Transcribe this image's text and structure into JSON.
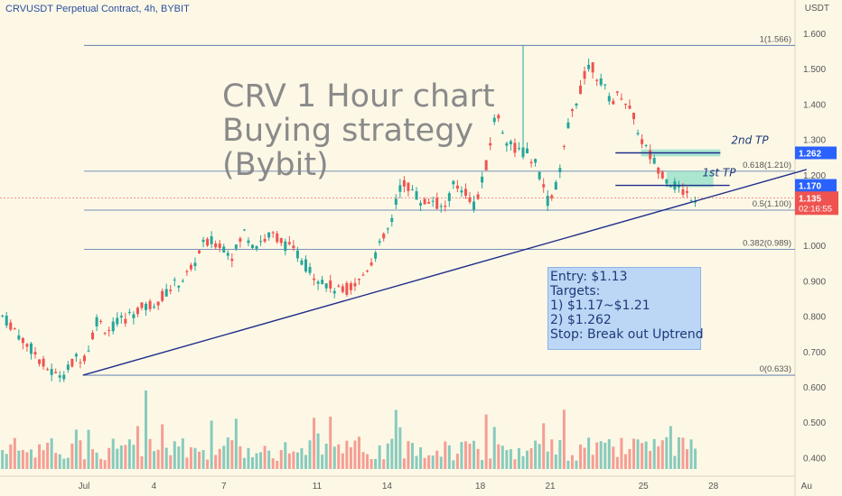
{
  "header": {
    "title": "CRVUSDT Perpetual Contract, 4h, BYBIT",
    "currency": "USDT"
  },
  "overlay": {
    "title_lines": [
      "CRV 1 Hour chart",
      "Buying strategy",
      "(Bybit)"
    ]
  },
  "note": {
    "lines": [
      "Entry: $1.13",
      "Targets:",
      "1) $1.17~$1.21",
      "2) $1.262",
      "Stop: Break out Uptrend"
    ]
  },
  "colors": {
    "background": "#fdf8e6",
    "up": "#26a69a",
    "down": "#ef5350",
    "fib_line": "#4a6fa8",
    "trendline": "#1f2f8a",
    "zone": "#8fe0c8",
    "label_blue": "#2962ff",
    "label_red": "#ef5350"
  },
  "chart_data": {
    "type": "candlestick",
    "ylim": [
      0.36,
      1.66
    ],
    "y_ticks": [
      "1.600",
      "1.500",
      "1.400",
      "1.300",
      "1.200",
      "1.100",
      "1.000",
      "0.900",
      "0.800",
      "0.700",
      "0.600",
      "0.500",
      "0.400"
    ],
    "x_ticks": [
      {
        "label": "Jul",
        "day": 0
      },
      {
        "label": "4",
        "day": 3
      },
      {
        "label": "7",
        "day": 6
      },
      {
        "label": "11",
        "day": 10
      },
      {
        "label": "14",
        "day": 13
      },
      {
        "label": "18",
        "day": 17
      },
      {
        "label": "21",
        "day": 20
      },
      {
        "label": "25",
        "day": 24
      },
      {
        "label": "28",
        "day": 27
      },
      {
        "label": "Au",
        "day": 31
      }
    ],
    "fib_levels": [
      {
        "label": "1(1.566)",
        "value": 1.566
      },
      {
        "label": "0.618(1.210)",
        "value": 1.21
      },
      {
        "label": "0.5(1.100)",
        "value": 1.1
      },
      {
        "label": "0.382(0.989)",
        "value": 0.989
      },
      {
        "label": "0(0.633)",
        "value": 0.633
      }
    ],
    "price_labels": [
      {
        "value": 1.262,
        "text": "1.262",
        "color": "#2962ff"
      },
      {
        "value": 1.17,
        "text": "1.170",
        "color": "#2962ff"
      }
    ],
    "current_price": {
      "value": 1.135,
      "text": "1.135",
      "countdown": "02:16:55"
    },
    "target_labels": [
      {
        "text": "2nd TP",
        "value": 1.262
      },
      {
        "text": "1st TP",
        "value": 1.17
      }
    ],
    "zones": [
      {
        "name": "2nd TP zone",
        "y_top": 1.272,
        "y_bottom": 1.252,
        "day_start": 23.9,
        "day_end": 27.3
      },
      {
        "name": "1st TP zone",
        "y_top": 1.21,
        "y_bottom": 1.165,
        "day_start": 25.0,
        "day_end": 27.0
      }
    ],
    "lines": [
      {
        "name": "trendline",
        "from": {
          "day": -0.05,
          "value": 0.633
        },
        "to": {
          "day": 31.0,
          "value": 1.215
        }
      },
      {
        "name": "2nd TP line",
        "from": {
          "day": 22.8,
          "value": 1.262
        },
        "to": {
          "day": 27.3,
          "value": 1.262
        }
      },
      {
        "name": "1st TP line",
        "from": {
          "day": 22.8,
          "value": 1.17
        },
        "to": {
          "day": 27.7,
          "value": 1.17
        }
      }
    ],
    "key_prices": [
      0.8,
      0.77,
      0.73,
      0.7,
      0.66,
      0.633,
      0.64,
      0.68,
      0.69,
      0.79,
      0.76,
      0.78,
      0.8,
      0.82,
      0.83,
      0.85,
      0.88,
      0.9,
      0.93,
      1.0,
      1.01,
      1.0,
      0.97,
      1.04,
      1.0,
      1.02,
      1.03,
      1.0,
      0.98,
      0.94,
      0.91,
      0.89,
      0.87,
      0.88,
      0.9,
      0.95,
      1.0,
      1.06,
      1.18,
      1.16,
      1.12,
      1.13,
      1.1,
      1.17,
      1.16,
      1.11,
      1.21,
      1.38,
      1.3,
      1.27,
      1.26,
      1.22,
      1.12,
      1.19,
      1.35,
      1.44,
      1.52,
      1.46,
      1.41,
      1.43,
      1.37,
      1.29,
      1.24,
      1.2,
      1.17,
      1.15,
      1.135
    ],
    "volume_ylim": [
      0,
      600
    ]
  }
}
